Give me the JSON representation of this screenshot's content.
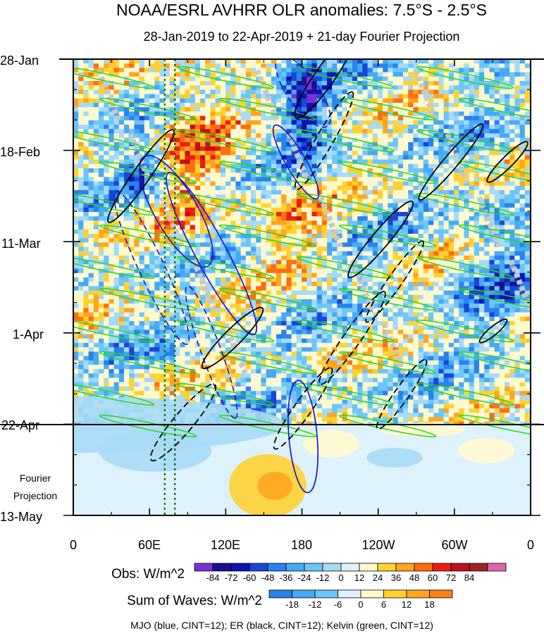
{
  "chart_data": {
    "type": "heatmap",
    "title": "NOAA/ESRL AVHRR OLR anomalies: 7.5°S - 2.5°S",
    "subtitle": "28-Jan-2019 to 22-Apr-2019 + 21-day Fourier Projection",
    "x_ticks": [
      "0",
      "60E",
      "120E",
      "180",
      "120W",
      "60W",
      "0"
    ],
    "y_ticks": [
      "28-Jan",
      "18-Feb",
      "11-Mar",
      "1-Apr",
      "22-Apr",
      "13-May"
    ],
    "projection_label": [
      "Fourier",
      "Projection"
    ],
    "x_range": [
      0,
      360
    ],
    "y_range_dates": [
      "28-Jan-2019",
      "13-May-2019"
    ],
    "projection_start": "22-Apr-2019",
    "reference_lines_lon": [
      72,
      80
    ],
    "obs_colorbar": {
      "label": "Obs: W/m^2",
      "levels": [
        "-84",
        "-72",
        "-60",
        "-48",
        "-36",
        "-24",
        "-12",
        "0",
        "12",
        "24",
        "36",
        "48",
        "60",
        "72",
        "84"
      ],
      "colors": [
        "#7a2fd6",
        "#1a0f8c",
        "#0a14b4",
        "#1a46d6",
        "#2a82ee",
        "#46aaf6",
        "#6cc6fa",
        "#a6daf8",
        "#dff2fb",
        "#fff9cf",
        "#ffd232",
        "#ffa61e",
        "#ff6e10",
        "#ee1c10",
        "#c0101a",
        "#9a2424",
        "#dc64b2"
      ]
    },
    "wave_colorbar": {
      "label": "Sum of Waves: W/m^2",
      "levels": [
        "-18",
        "-12",
        "-6",
        "0",
        "6",
        "12",
        "18"
      ],
      "colors": [
        "#2a82ee",
        "#46aaf6",
        "#6cc6fa",
        "#dff2fb",
        "#fff9cf",
        "#ffd232",
        "#ffa61e",
        "#ff8014"
      ]
    },
    "footnote": "MJO (blue, CINT=12); ER (black, CINT=12); Kelvin (green, CINT=12)",
    "contour_colors": {
      "mjo": "#1a1ad0",
      "er": "#000000",
      "kelvin": "#2ad81a",
      "grey_mask": "#c8c8c8"
    }
  }
}
